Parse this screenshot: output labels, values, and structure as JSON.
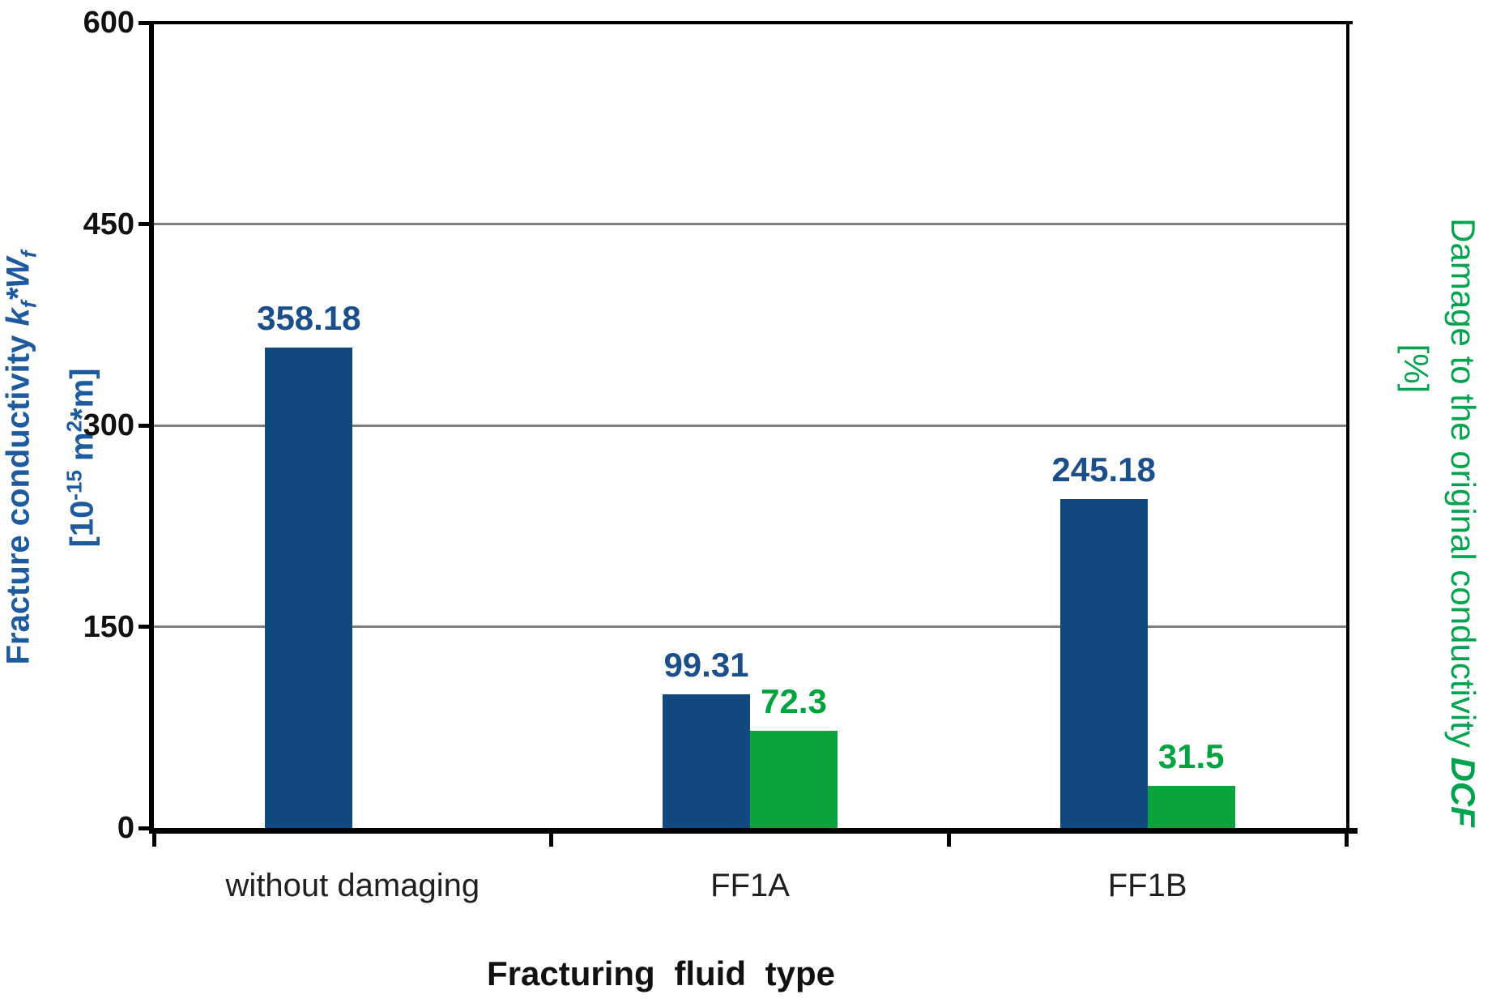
{
  "figure": {
    "x_axis_title": "Fracturing fluid type",
    "left_axis_title": {
      "prefix": "Fracture conductivity ",
      "k": "k",
      "k_sub": "f",
      "star": "*",
      "w": "W",
      "w_sub": "f",
      "unit_p1": "[10",
      "unit_exp": "-15",
      "unit_p2": " m",
      "unit_sq": "2",
      "unit_p3": "*m]"
    },
    "right_axis_title": {
      "prefix": "Damage to the original conductivity ",
      "var": "DCF",
      "unit": "[%]"
    },
    "colors": {
      "bar_blue": "#11497e",
      "bar_green": "#0ba43c",
      "label_blue": "#1a4f8c",
      "label_green": "#00a33e",
      "title_blue": "#1d5a9e",
      "title_green": "#00a44f",
      "gridline_gray": "#7f7f7f",
      "axis_black": "#000000"
    }
  },
  "chart_data": {
    "type": "bar",
    "title": "",
    "xlabel": "Fracturing fluid type",
    "ylabel_left": "Fracture conductivity kf*Wf [10-15 m2*m]",
    "ylabel_right": "Damage to the original conductivity DCF [%]",
    "categories": [
      "without damaging",
      "FF1A",
      "FF1B"
    ],
    "series": [
      {
        "name": "Fracture conductivity kf*Wf",
        "axis": "left",
        "color": "#11497e",
        "label_color": "#1a4f8c",
        "values": [
          358.18,
          99.31,
          245.18
        ],
        "data_labels": [
          "358.18",
          "99.31",
          "245.18"
        ]
      },
      {
        "name": "Damage to the original conductivity DCF",
        "axis": "right",
        "color": "#0ba43c",
        "label_color": "#00a33e",
        "values": [
          null,
          72.3,
          31.5
        ],
        "data_labels": [
          null,
          "72.3",
          "31.5"
        ]
      }
    ],
    "left_axis": {
      "min": 0,
      "max": 600,
      "tick_values": [
        0,
        150,
        300,
        450,
        600
      ],
      "tick_labels": [
        "0",
        "150",
        "300",
        "450",
        "600"
      ]
    },
    "right_axis": {
      "min": 0,
      "max": 600,
      "tick_labels_visible": false
    },
    "grid": true,
    "legend": false
  }
}
